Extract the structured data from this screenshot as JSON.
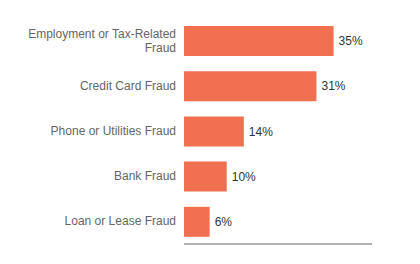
{
  "chart_data": {
    "type": "bar",
    "orientation": "horizontal",
    "categories": [
      "Loan or Lease Fraud",
      "Bank Fraud",
      "Phone or Utilities Fraud",
      "Credit Card Fraud",
      "Employment or Tax-Related\nFraud"
    ],
    "values": [
      6,
      10,
      14,
      31,
      35
    ],
    "value_labels": [
      "6%",
      "10%",
      "14%",
      "31%",
      "35%"
    ],
    "color": "#f07050",
    "xlim": [
      0,
      44
    ],
    "data_labels": true,
    "tick_labels": "y",
    "grid": false
  }
}
